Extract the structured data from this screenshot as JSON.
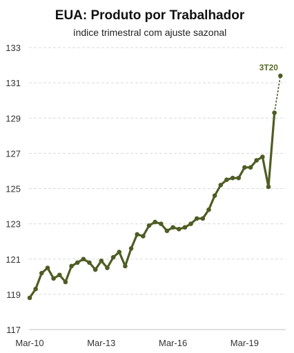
{
  "chart_data": {
    "type": "line",
    "title": "EUA: Produto por Trabalhador",
    "subtitle": "índice trimestral com ajuste sazonal",
    "xlabel": "",
    "ylabel": "",
    "ylim": [
      117,
      133
    ],
    "yticks": [
      117,
      119,
      121,
      123,
      125,
      127,
      129,
      131,
      133
    ],
    "xticks": [
      {
        "label": "Mar-10",
        "index": 0
      },
      {
        "label": "Mar-13",
        "index": 12
      },
      {
        "label": "Mar-16",
        "index": 24
      },
      {
        "label": "Mar-19",
        "index": 36
      }
    ],
    "grid": true,
    "color": "#4e5d23",
    "series": [
      {
        "values": [
          118.8,
          119.3,
          120.2,
          120.5,
          119.9,
          120.1,
          119.7,
          120.6,
          120.8,
          121.0,
          120.8,
          120.4,
          120.9,
          120.5,
          121.1,
          121.4,
          120.6,
          121.6,
          122.4,
          122.3,
          122.9,
          123.1,
          123.0,
          122.6,
          122.8,
          122.7,
          122.8,
          123.0,
          123.3,
          123.3,
          123.8,
          124.6,
          125.2,
          125.5,
          125.6,
          125.6,
          126.2,
          126.2,
          126.6,
          126.8,
          125.1,
          129.3
        ]
      }
    ],
    "projection": {
      "value": 131.4,
      "label": "3T20"
    }
  }
}
